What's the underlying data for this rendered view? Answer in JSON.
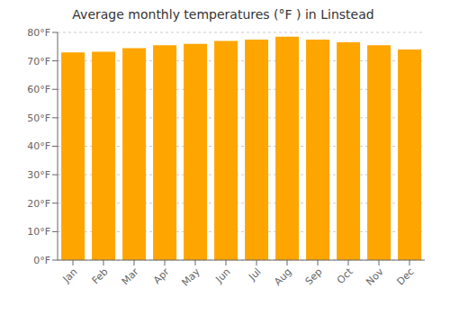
{
  "chart_data": {
    "type": "bar",
    "title": "Average monthly temperatures (°F ) in Linstead",
    "categories": [
      "Jan",
      "Feb",
      "Mar",
      "Apr",
      "May",
      "Jun",
      "Jul",
      "Aug",
      "Sep",
      "Oct",
      "Nov",
      "Dec"
    ],
    "values": [
      73.0,
      73.2,
      74.5,
      75.5,
      76.0,
      77.0,
      77.5,
      78.5,
      77.5,
      76.5,
      75.5,
      74.0
    ],
    "color": "#FFA500",
    "ylim": [
      0,
      80
    ],
    "yticks": [
      {
        "value": 0,
        "label": "0°F"
      },
      {
        "value": 10,
        "label": "10°F"
      },
      {
        "value": 20,
        "label": "20°F"
      },
      {
        "value": 30,
        "label": "30°F"
      },
      {
        "value": 40,
        "label": "40°F"
      },
      {
        "value": 50,
        "label": "50°F"
      },
      {
        "value": 60,
        "label": "60°F"
      },
      {
        "value": 70,
        "label": "70°F"
      },
      {
        "value": 80,
        "label": "80°F"
      }
    ],
    "grid": true
  }
}
